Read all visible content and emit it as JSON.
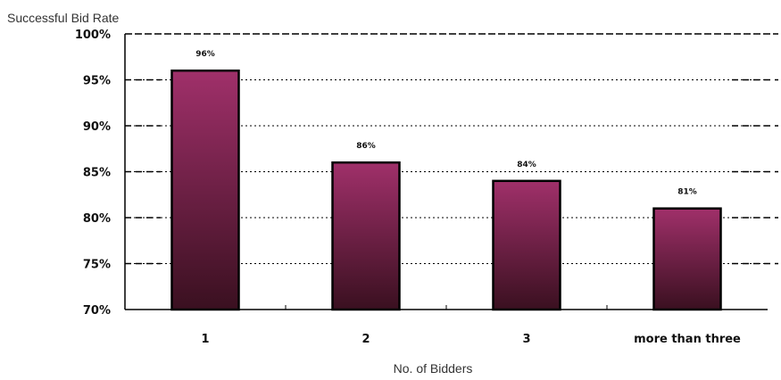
{
  "chart_data": {
    "type": "bar",
    "ylabel": "Successful Bid Rate",
    "xlabel": "No. of Bidders",
    "categories": [
      "1",
      "2",
      "3",
      "more than three"
    ],
    "values": [
      96,
      86,
      84,
      81
    ],
    "data_labels": [
      "96%",
      "86%",
      "84%",
      "81%"
    ],
    "yticks": [
      "70%",
      "75%",
      "80%",
      "85%",
      "90%",
      "95%",
      "100%"
    ],
    "ylim": [
      70,
      100
    ],
    "grid": true,
    "bar_colors": {
      "top": "#a0306a",
      "bottom": "#3a1020",
      "edge": "#000000"
    }
  }
}
